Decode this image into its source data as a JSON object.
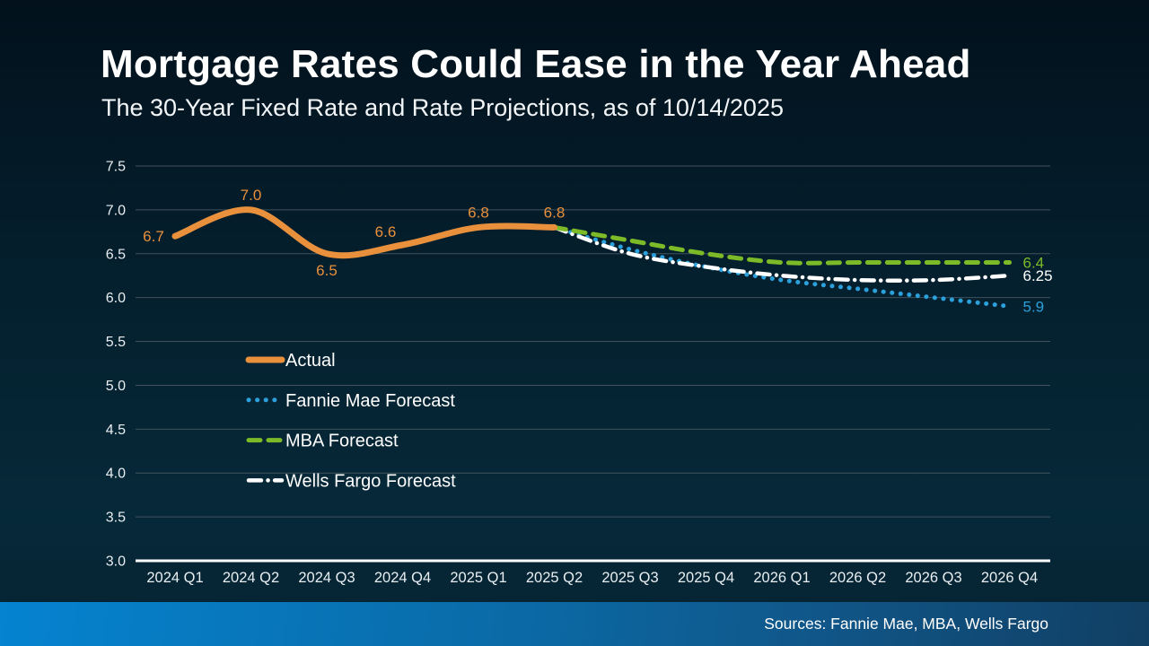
{
  "slide": {
    "title": "Mortgage Rates Could Ease in the Year Ahead",
    "subtitle": "The 30-Year Fixed Rate and Rate Projections, as of 10/14/2025",
    "source_note": "Sources: Fannie Mae, MBA, Wells Fargo"
  },
  "colors": {
    "background_top": "#02111c",
    "background_bottom": "#062939",
    "grid": "#55626b",
    "axis_line": "#ffffff",
    "axis_text": "#e9eef1",
    "legend_text": "#ffffff",
    "actual": "#e8903c",
    "fannie_mae": "#2ba0db",
    "mba": "#7cbb27",
    "wells_fargo": "#ffffff",
    "footer_bar_left": "#0583d0",
    "footer_bar_right": "#113f63"
  },
  "chart_data": {
    "type": "line",
    "title": "Mortgage Rates Could Ease in the Year Ahead",
    "subtitle": "The 30-Year Fixed Rate and Rate Projections, as of 10/14/2025",
    "xlabel": "",
    "ylabel": "",
    "ylim": [
      3.0,
      7.5
    ],
    "ytick_labels": [
      "7.5",
      "7.0",
      "6.5",
      "6.0",
      "5.5",
      "5.0",
      "4.5",
      "4.0",
      "3.5",
      "3.0"
    ],
    "grid": true,
    "legend_position": "inside-left",
    "categories": [
      "2024 Q1",
      "2024 Q2",
      "2024 Q3",
      "2024 Q4",
      "2025 Q1",
      "2025 Q2",
      "2025 Q3",
      "2025 Q4",
      "2026 Q1",
      "2026 Q2",
      "2026 Q3",
      "2026 Q4"
    ],
    "series": [
      {
        "name": "Actual",
        "key": "actual",
        "color": "#e8903c",
        "style": "solid",
        "width": 7,
        "start_index": 0,
        "values": [
          6.7,
          7.0,
          6.5,
          6.6,
          6.8,
          6.8
        ]
      },
      {
        "name": "Fannie Mae Forecast",
        "key": "fannie_mae",
        "color": "#2ba0db",
        "style": "dotted",
        "width": 5,
        "start_index": 5,
        "values": [
          6.8,
          6.55,
          6.35,
          6.2,
          6.1,
          6.0,
          5.9
        ]
      },
      {
        "name": "MBA Forecast",
        "key": "mba",
        "color": "#7cbb27",
        "style": "dashed",
        "width": 5,
        "start_index": 5,
        "values": [
          6.8,
          6.65,
          6.5,
          6.4,
          6.4,
          6.4,
          6.4
        ]
      },
      {
        "name": "Wells Fargo Forecast",
        "key": "wells_fargo",
        "color": "#ffffff",
        "style": "dash-dot",
        "width": 4.5,
        "start_index": 5,
        "values": [
          6.8,
          6.5,
          6.35,
          6.25,
          6.2,
          6.2,
          6.25
        ]
      }
    ],
    "point_labels": [
      {
        "text": "6.7",
        "series": 0,
        "index": 0,
        "pos": "left"
      },
      {
        "text": "7.0",
        "series": 0,
        "index": 1,
        "pos": "above"
      },
      {
        "text": "6.5",
        "series": 0,
        "index": 2,
        "pos": "below"
      },
      {
        "text": "6.6",
        "series": 0,
        "index": 3,
        "pos": "above-left"
      },
      {
        "text": "6.8",
        "series": 0,
        "index": 4,
        "pos": "above"
      },
      {
        "text": "6.8",
        "series": 0,
        "index": 5,
        "pos": "above"
      },
      {
        "text": "6.4",
        "series": 2,
        "index": 6,
        "pos": "right"
      },
      {
        "text": "6.25",
        "series": 3,
        "index": 6,
        "pos": "right"
      },
      {
        "text": "5.9",
        "series": 1,
        "index": 6,
        "pos": "right"
      }
    ]
  }
}
